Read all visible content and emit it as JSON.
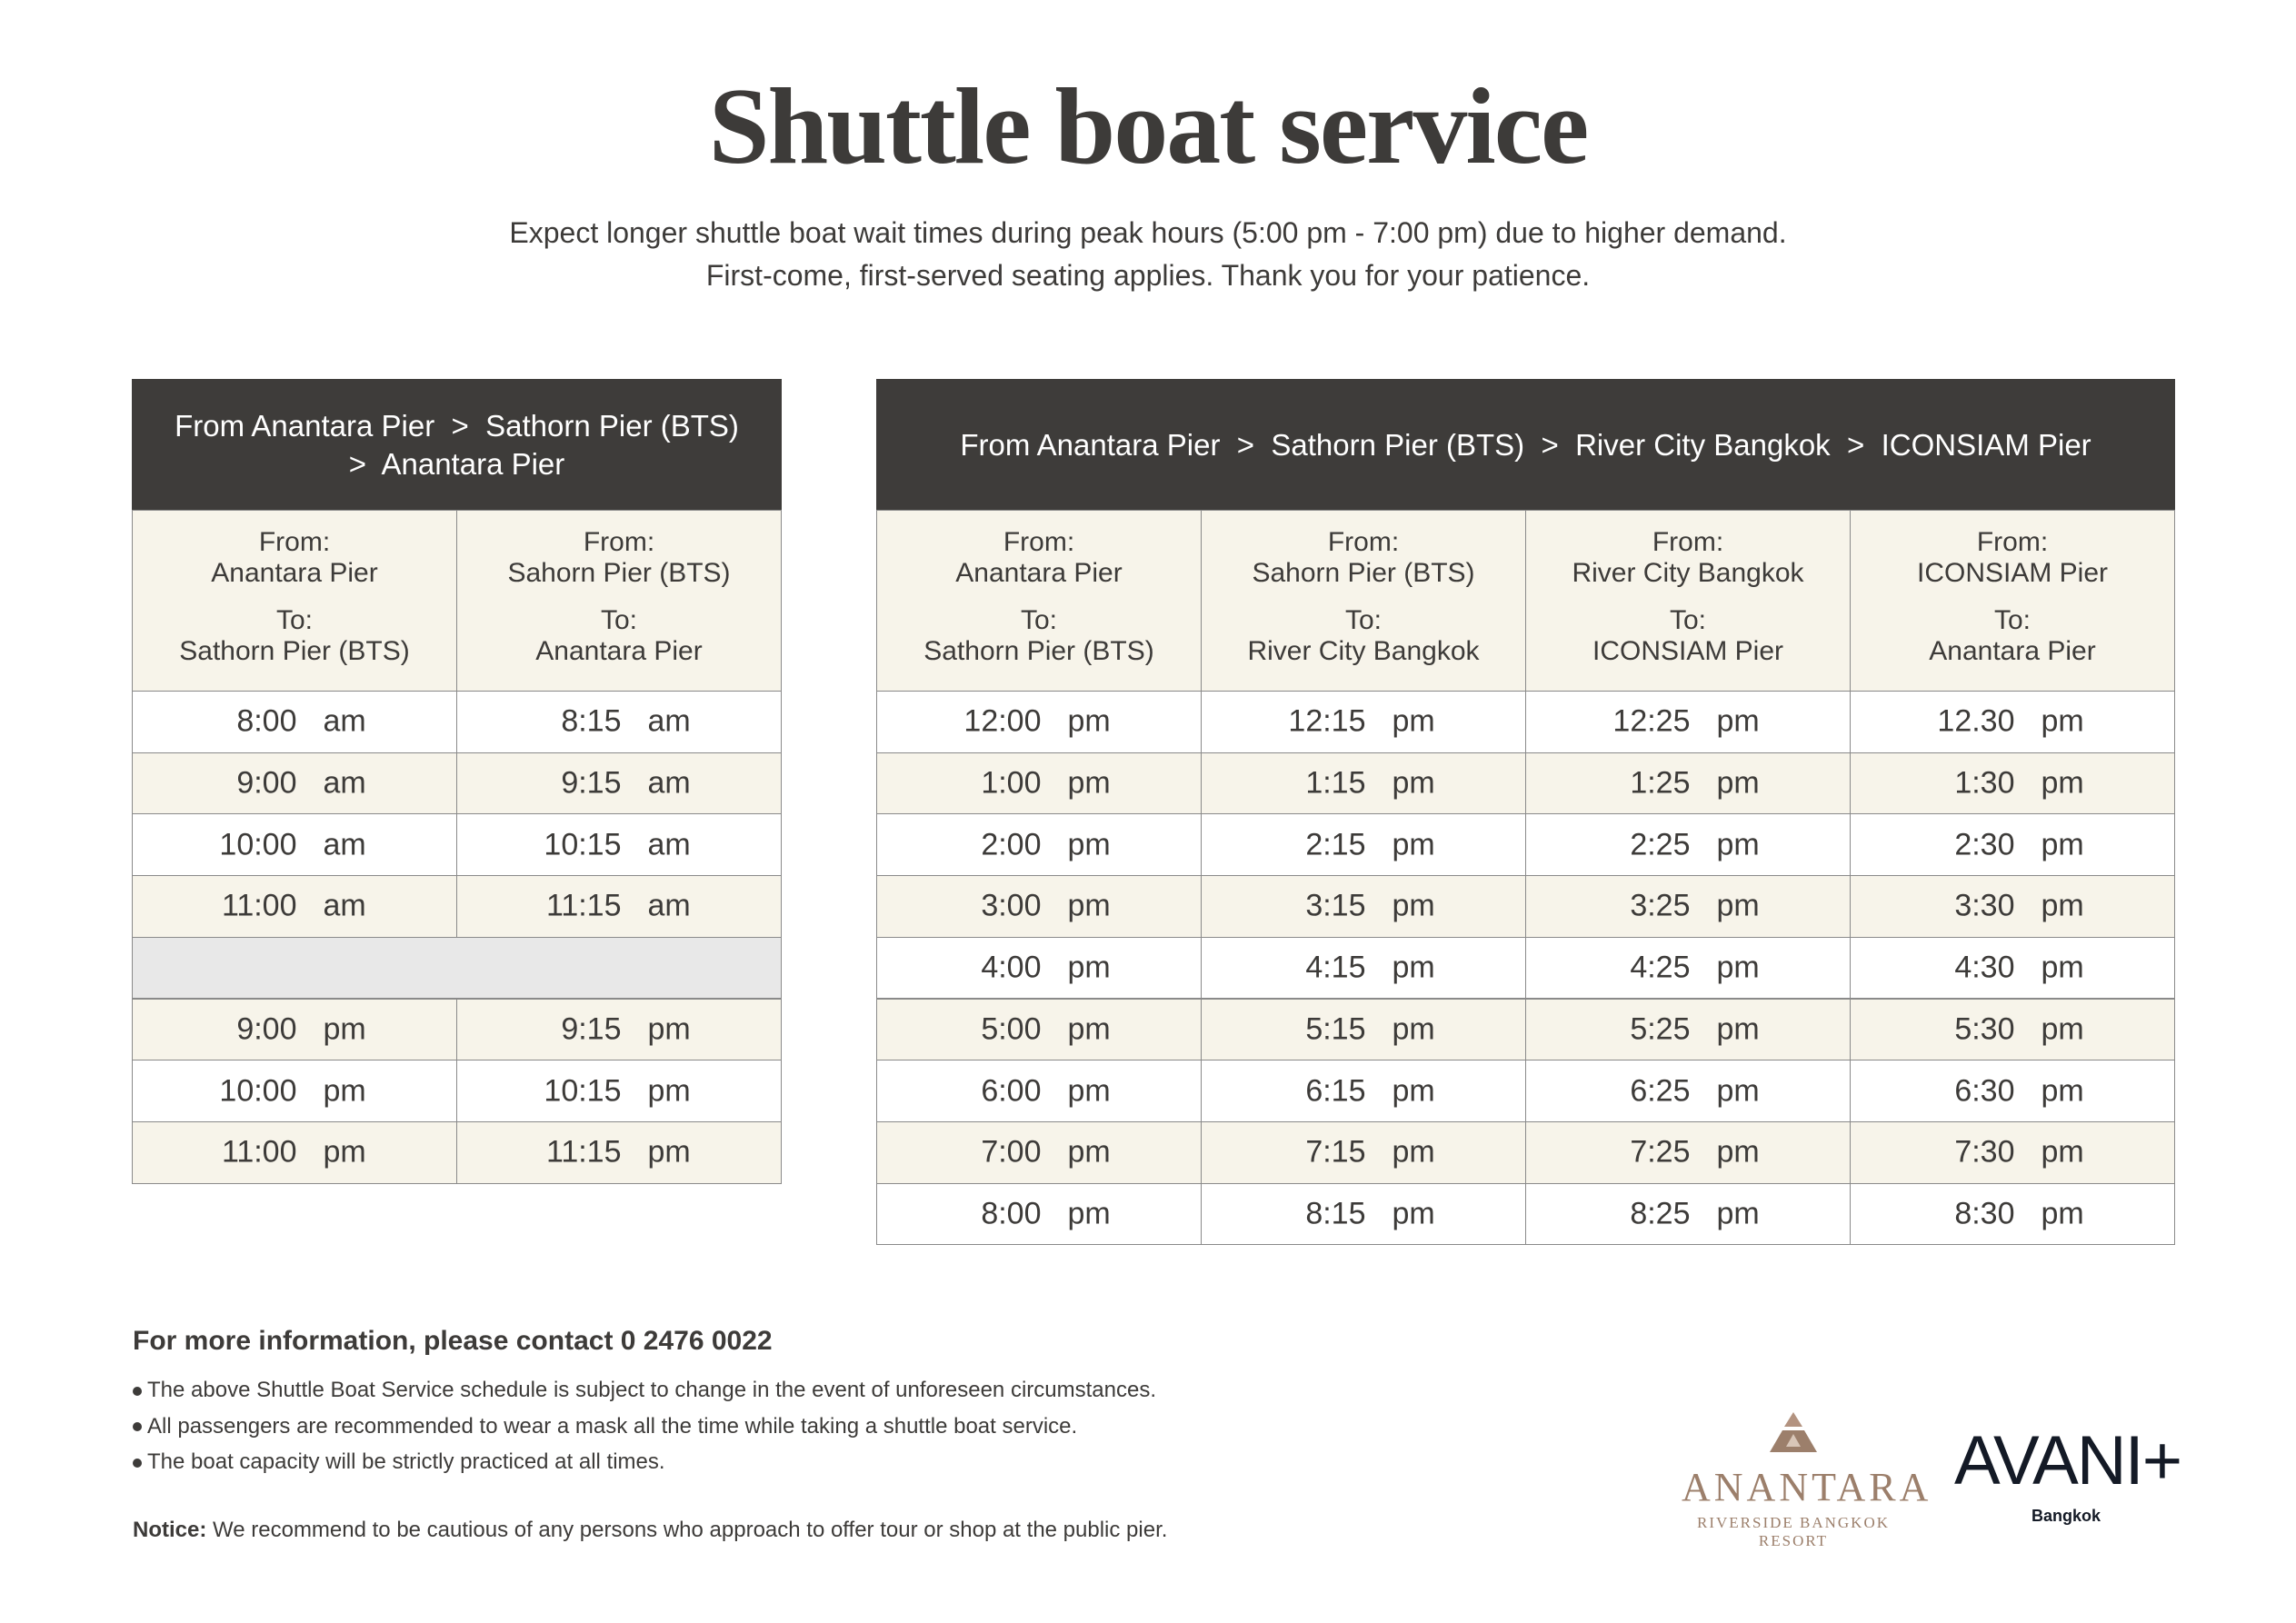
{
  "header": {
    "title": "Shuttle boat service",
    "subtitle": [
      "Expect longer shuttle boat wait times during peak hours (5:00 pm - 7:00 pm) due to higher demand.",
      "First-come, first-served seating applies. Thank you for your patience."
    ]
  },
  "tables": [
    {
      "header": [
        "From Anantara Pier  >  Sathorn Pier (BTS)",
        ">  Anantara Pier"
      ],
      "columns": [
        {
          "from_label": "From:",
          "from": "Anantara Pier",
          "to_label": "To:",
          "to": "Sathorn Pier (BTS)"
        },
        {
          "from_label": "From:",
          "from": "Sahorn Pier (BTS)",
          "to_label": "To:",
          "to": "Anantara Pier"
        }
      ],
      "rows": [
        [
          [
            "8:00",
            "am"
          ],
          [
            "8:15",
            "am"
          ]
        ],
        [
          [
            "9:00",
            "am"
          ],
          [
            "9:15",
            "am"
          ]
        ],
        [
          [
            "10:00",
            "am"
          ],
          [
            "10:15",
            "am"
          ]
        ],
        [
          [
            "11:00",
            "am"
          ],
          [
            "11:15",
            "am"
          ]
        ],
        null,
        [
          [
            "9:00",
            "pm"
          ],
          [
            "9:15",
            "pm"
          ]
        ],
        [
          [
            "10:00",
            "pm"
          ],
          [
            "10:15",
            "pm"
          ]
        ],
        [
          [
            "11:00",
            "pm"
          ],
          [
            "11:15",
            "pm"
          ]
        ]
      ]
    },
    {
      "header": [
        "From Anantara Pier  >  Sathorn Pier (BTS)  >  River City Bangkok  >  ICONSIAM Pier"
      ],
      "columns": [
        {
          "from_label": "From:",
          "from": "Anantara Pier",
          "to_label": "To:",
          "to": "Sathorn Pier (BTS)"
        },
        {
          "from_label": "From:",
          "from": "Sahorn Pier (BTS)",
          "to_label": "To:",
          "to": "River City Bangkok"
        },
        {
          "from_label": "From:",
          "from": "River City Bangkok",
          "to_label": "To:",
          "to": "ICONSIAM Pier"
        },
        {
          "from_label": "From:",
          "from": "ICONSIAM Pier",
          "to_label": "To:",
          "to": "Anantara Pier"
        }
      ],
      "rows": [
        [
          [
            "12:00",
            "pm"
          ],
          [
            "12:15",
            "pm"
          ],
          [
            "12:25",
            "pm"
          ],
          [
            "12.30",
            "pm"
          ]
        ],
        [
          [
            "1:00",
            "pm"
          ],
          [
            "1:15",
            "pm"
          ],
          [
            "1:25",
            "pm"
          ],
          [
            "1:30",
            "pm"
          ]
        ],
        [
          [
            "2:00",
            "pm"
          ],
          [
            "2:15",
            "pm"
          ],
          [
            "2:25",
            "pm"
          ],
          [
            "2:30",
            "pm"
          ]
        ],
        [
          [
            "3:00",
            "pm"
          ],
          [
            "3:15",
            "pm"
          ],
          [
            "3:25",
            "pm"
          ],
          [
            "3:30",
            "pm"
          ]
        ],
        [
          [
            "4:00",
            "pm"
          ],
          [
            "4:15",
            "pm"
          ],
          [
            "4:25",
            "pm"
          ],
          [
            "4:30",
            "pm"
          ]
        ],
        [
          [
            "5:00",
            "pm"
          ],
          [
            "5:15",
            "pm"
          ],
          [
            "5:25",
            "pm"
          ],
          [
            "5:30",
            "pm"
          ]
        ],
        [
          [
            "6:00",
            "pm"
          ],
          [
            "6:15",
            "pm"
          ],
          [
            "6:25",
            "pm"
          ],
          [
            "6:30",
            "pm"
          ]
        ],
        [
          [
            "7:00",
            "pm"
          ],
          [
            "7:15",
            "pm"
          ],
          [
            "7:25",
            "pm"
          ],
          [
            "7:30",
            "pm"
          ]
        ],
        [
          [
            "8:00",
            "pm"
          ],
          [
            "8:15",
            "pm"
          ],
          [
            "8:25",
            "pm"
          ],
          [
            "8:30",
            "pm"
          ]
        ]
      ]
    }
  ],
  "footer": {
    "contact": "For more information, please contact 0 2476 0022",
    "bullets": [
      "The above Shuttle Boat Service schedule is subject to change in the event of unforeseen circumstances.",
      "All passengers are recommended to wear a mask all the time while taking a shuttle boat service.",
      "The boat capacity will be strictly practiced at all times."
    ],
    "notice": {
      "label": "Notice:",
      "text": "We recommend to be cautious of any persons who approach to offer tour or shop at the public pier."
    }
  },
  "logos": {
    "anantara": {
      "name": "ANANTARA",
      "line1": "RIVERSIDE BANGKOK",
      "line2": "RESORT"
    },
    "avani": {
      "name": "AVANI+",
      "city": "Bangkok"
    }
  }
}
